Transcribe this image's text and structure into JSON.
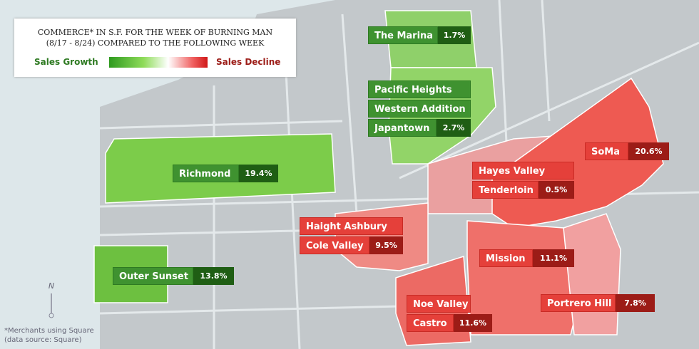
{
  "header": {
    "title_lines": [
      "COMMERCE* IN S.F. FOR THE WEEK OF BURNING MAN",
      "(8/17 - 8/24) COMPARED TO THE FOLLOWING  WEEK"
    ],
    "legend": {
      "growth": "Sales Growth",
      "decline": "Sales Decline"
    }
  },
  "regions": [
    {
      "names": [
        "The Marina"
      ],
      "value": "1.7%"
    },
    {
      "names": [
        "Pacific Heights",
        "Western Addition",
        "Japantown"
      ],
      "value": "2.7%"
    },
    {
      "names": [
        "Richmond"
      ],
      "value": "19.4%"
    },
    {
      "names": [
        "Outer Sunset"
      ],
      "value": "13.8%"
    },
    {
      "names": [
        "SoMa"
      ],
      "value": "20.6%"
    },
    {
      "names": [
        "Hayes Valley",
        "Tenderloin"
      ],
      "value": "0.5%"
    },
    {
      "names": [
        "Haight Ashbury",
        "Cole Valley"
      ],
      "value": "9.5%"
    },
    {
      "names": [
        "Mission"
      ],
      "value": "11.1%"
    },
    {
      "names": [
        "Noe Valley",
        "Castro"
      ],
      "value": "11.6%"
    },
    {
      "names": [
        "Portrero Hill"
      ],
      "value": "7.8%"
    }
  ],
  "compass": "N",
  "footnote": [
    "*Merchants using Square",
    "(data source: Square)"
  ]
}
